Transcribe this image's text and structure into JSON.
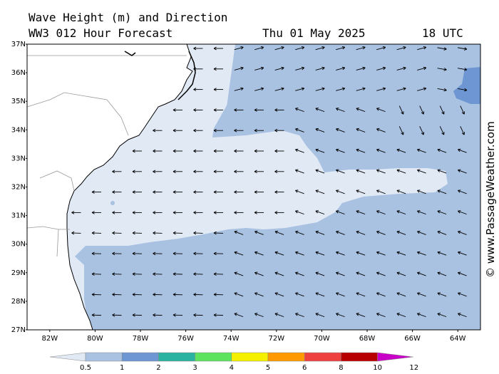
{
  "header": {
    "title": "Wave Height (m) and Direction",
    "subtitle": "WW3 012 Hour Forecast",
    "date": "Thu 01 May 2025",
    "time": "18 UTC"
  },
  "credit": "© www.PassageWeather.com",
  "map": {
    "lon_range": [
      -83,
      -63
    ],
    "lat_range": [
      27,
      37
    ],
    "lat_labels": [
      "27N",
      "28N",
      "29N",
      "30N",
      "31N",
      "32N",
      "33N",
      "34N",
      "35N",
      "36N",
      "37N"
    ],
    "lon_labels": [
      "82W",
      "80W",
      "78W",
      "76W",
      "74W",
      "72W",
      "70W",
      "68W",
      "66W",
      "64W"
    ],
    "colors": {
      "land": "#ffffff",
      "level_0_5": "#e1e9f5",
      "level_1": "#a9c2e2",
      "level_2": "#6d96d2"
    }
  },
  "colorbar": {
    "labels": [
      "0.5",
      "1",
      "2",
      "3",
      "4",
      "5",
      "6",
      "8",
      "10",
      "12"
    ],
    "colors": [
      "#e1e9f5",
      "#a9c2e2",
      "#6d96d2",
      "#2ab3a0",
      "#5ee35e",
      "#f4f000",
      "#ff9900",
      "#ef4040",
      "#b90000",
      "#c800c8"
    ]
  }
}
